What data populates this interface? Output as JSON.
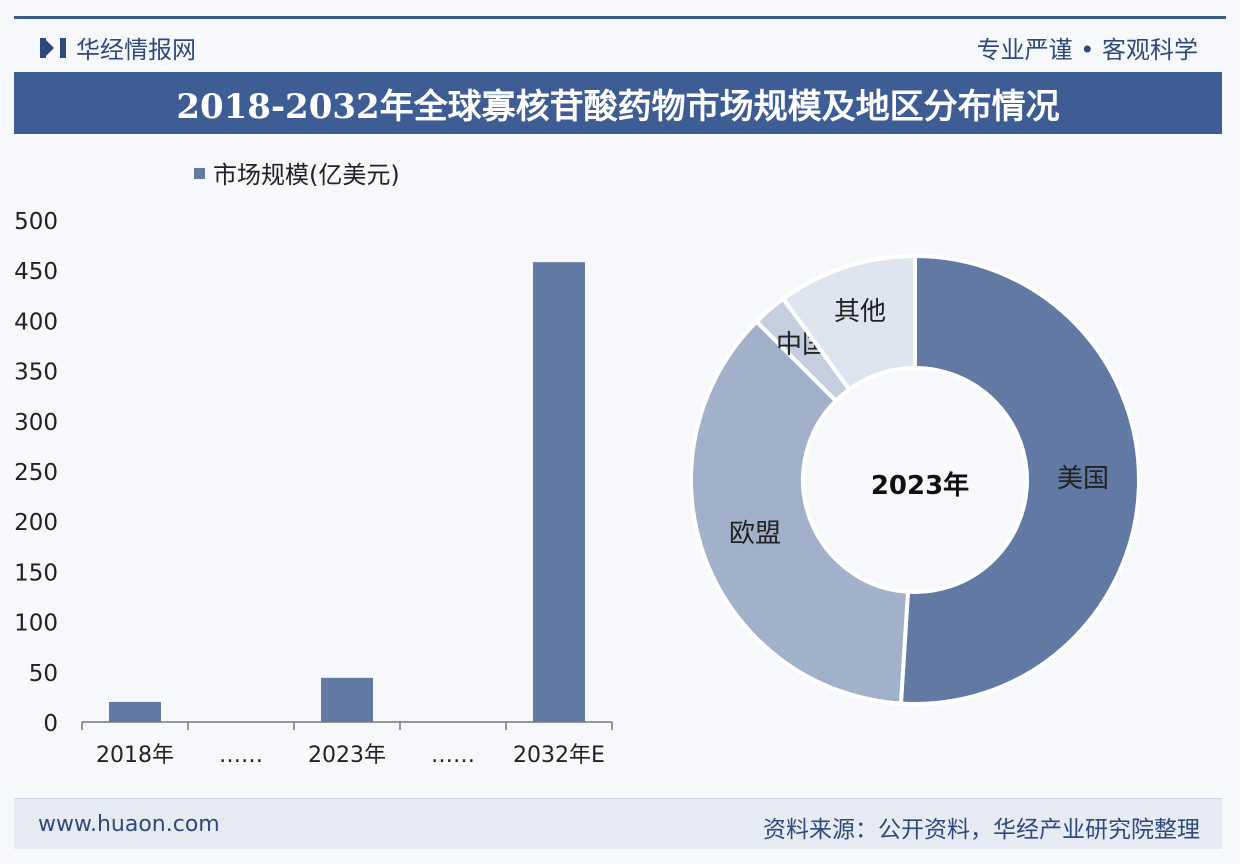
{
  "header": {
    "brand": "华经情报网",
    "slogan": "专业严谨 • 客观科学",
    "title": "2018-2032年全球寡核苷酸药物市场规模及地区分布情况"
  },
  "footer": {
    "url": "www.huaon.com",
    "source": "资料来源：公开资料，华经产业研究院整理"
  },
  "watermark": {
    "text": "华经产业研究院",
    "url": "www.huaon.com"
  },
  "chart_data": [
    {
      "type": "bar",
      "categories": [
        "2018年",
        "……",
        "2023年",
        "……",
        "2032年E"
      ],
      "series": [
        {
          "name": "市场规模(亿美元)",
          "values": [
            20,
            null,
            44,
            null,
            458
          ]
        }
      ],
      "ylim": [
        0,
        500
      ],
      "yticks": [
        0,
        50,
        100,
        150,
        200,
        250,
        300,
        350,
        400,
        450,
        500
      ],
      "legend": "top",
      "color": "#6179a3",
      "grid": false
    },
    {
      "type": "pie",
      "subtype": "donut",
      "center_label": "2023年",
      "labels": [
        "美国",
        "欧盟",
        "中国",
        "其他"
      ],
      "values": [
        51,
        36.5,
        2.5,
        10
      ],
      "unit": "%",
      "colors": [
        "#6179a3",
        "#a1b1ca",
        "#c4cede",
        "#dfe5ee"
      ]
    }
  ]
}
